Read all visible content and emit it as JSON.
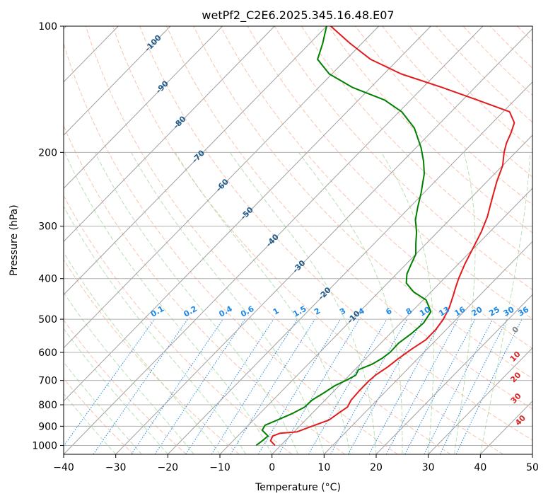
{
  "chart_data": {
    "type": "line",
    "title": "wetPf2_C2E6.2025.345.16.48.E07",
    "xlabel": "Temperature (°C)",
    "ylabel": "Pressure (hPa)",
    "xlim": [
      -40,
      50
    ],
    "ylim": [
      1050,
      100
    ],
    "x_ticks": [
      -40,
      -30,
      -20,
      -10,
      0,
      10,
      20,
      30,
      40,
      50
    ],
    "x_tick_labels": [
      "−40",
      "−30",
      "−20",
      "−10",
      "0",
      "10",
      "20",
      "30",
      "40",
      "50"
    ],
    "y_ticks": [
      1000,
      900,
      800,
      700,
      600,
      500,
      400,
      300,
      200,
      100
    ],
    "y_tick_labels": [
      "1000",
      "900",
      "800",
      "700",
      "600",
      "500",
      "400",
      "300",
      "200",
      "100"
    ],
    "grid": true,
    "colors": {
      "temperature": "#e31a1c",
      "dewpoint": "#008000",
      "isotherm": "#a0a0a0",
      "dry_adiabat": "#f4a582",
      "moist_adiabat": "#a6d8a0",
      "mixing_ratio": "#1e88e5",
      "frame": "#000000"
    },
    "series": [
      {
        "name": "Temperature",
        "points": [
          [
            -1.1,
            1000
          ],
          [
            -2.8,
            975
          ],
          [
            -3.3,
            950
          ],
          [
            -2.4,
            935
          ],
          [
            0.6,
            928
          ],
          [
            2.4,
            900
          ],
          [
            4.5,
            870
          ],
          [
            5.0,
            840
          ],
          [
            5.6,
            810
          ],
          [
            5.0,
            780
          ],
          [
            4.8,
            740
          ],
          [
            4.8,
            700
          ],
          [
            5.0,
            680
          ],
          [
            5.8,
            650
          ],
          [
            6.3,
            620
          ],
          [
            7.0,
            590
          ],
          [
            8.0,
            560
          ],
          [
            8.0,
            530
          ],
          [
            7.5,
            500
          ],
          [
            6.5,
            470
          ],
          [
            5.0,
            440
          ],
          [
            3.9,
            420
          ],
          [
            2.8,
            400
          ],
          [
            1.3,
            370
          ],
          [
            -0.1,
            340
          ],
          [
            -1.6,
            310
          ],
          [
            -3.3,
            285
          ],
          [
            -5.6,
            260
          ],
          [
            -8.1,
            235
          ],
          [
            -10.0,
            215
          ],
          [
            -12.2,
            200
          ],
          [
            -13.5,
            190
          ],
          [
            -14.5,
            180
          ],
          [
            -15.8,
            170
          ],
          [
            -18.8,
            160
          ],
          [
            -27.2,
            150
          ],
          [
            -36.3,
            140
          ],
          [
            -46.7,
            130
          ],
          [
            -55.3,
            120
          ],
          [
            -62.2,
            110
          ],
          [
            -69.2,
            100
          ]
        ]
      },
      {
        "name": "Dewpoint",
        "points": [
          [
            -4.7,
            1000
          ],
          [
            -4.4,
            975
          ],
          [
            -4.2,
            950
          ],
          [
            -6.4,
            920
          ],
          [
            -6.8,
            895
          ],
          [
            -5.4,
            870
          ],
          [
            -3.8,
            840
          ],
          [
            -2.6,
            810
          ],
          [
            -2.5,
            780
          ],
          [
            -1.6,
            750
          ],
          [
            -0.8,
            720
          ],
          [
            0.3,
            700
          ],
          [
            1.2,
            680
          ],
          [
            0.7,
            660
          ],
          [
            2.3,
            640
          ],
          [
            3.1,
            620
          ],
          [
            3.5,
            600
          ],
          [
            3.4,
            570
          ],
          [
            4.1,
            540
          ],
          [
            4.4,
            510
          ],
          [
            3.7,
            480
          ],
          [
            0.6,
            450
          ],
          [
            -3.4,
            430
          ],
          [
            -6.4,
            410
          ],
          [
            -8.0,
            390
          ],
          [
            -9.0,
            370
          ],
          [
            -10.0,
            350
          ],
          [
            -12.0,
            330
          ],
          [
            -14.0,
            310
          ],
          [
            -16.5,
            290
          ],
          [
            -18.5,
            270
          ],
          [
            -20.5,
            250
          ],
          [
            -23.5,
            225
          ],
          [
            -26.0,
            210
          ],
          [
            -29.0,
            195
          ],
          [
            -34.0,
            175
          ],
          [
            -39.5,
            160
          ],
          [
            -45.0,
            150
          ],
          [
            -53.5,
            140
          ],
          [
            -60.5,
            130
          ],
          [
            -65.5,
            120
          ],
          [
            -67.5,
            110
          ],
          [
            -70.0,
            100
          ]
        ]
      }
    ],
    "isotherm_labels": [
      "-100",
      "-90",
      "-80",
      "-70",
      "-60",
      "-50",
      "-40",
      "-30",
      "-20",
      "-10"
    ],
    "mixing_ratio_labels": [
      "0.1",
      "0.2",
      "0.4",
      "0.6",
      "1",
      "1.5",
      "2",
      "3",
      "4",
      "6",
      "8",
      "10",
      "13",
      "16",
      "20",
      "25",
      "30",
      "36"
    ],
    "theta_e_labels": [
      "0",
      "10",
      "20",
      "30",
      "40"
    ]
  }
}
